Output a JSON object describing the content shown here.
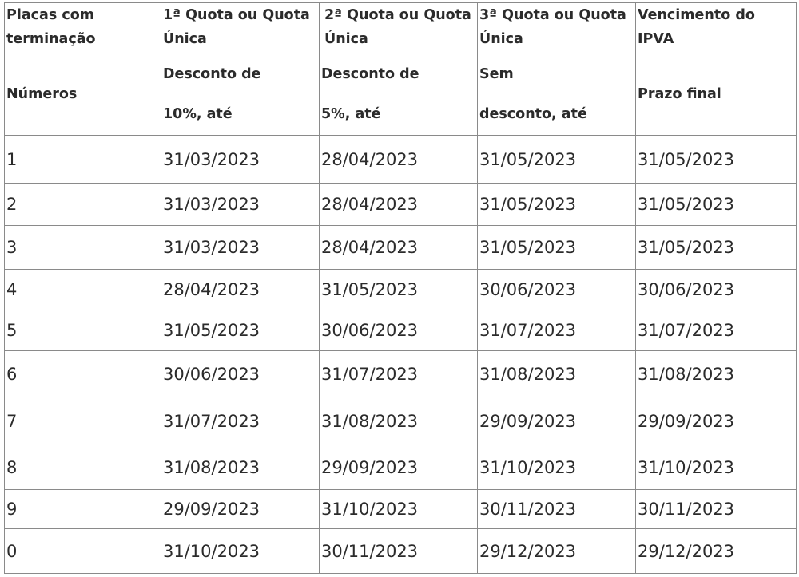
{
  "header": [
    "Placas com terminação",
    "1ª Quota ou Quota Única",
    "2ª Quota ou Quota Única",
    "3ª Quota ou Quota Única",
    "Vencimento do IPVA"
  ],
  "subheader": [
    {
      "line1": "Números",
      "line2": ""
    },
    {
      "line1": "Desconto de",
      "line2": "10%, até"
    },
    {
      "line1": "Desconto de",
      "line2": "5%, até"
    },
    {
      "line1": "Sem",
      "line2": "desconto, até"
    },
    {
      "line1": "Prazo final",
      "line2": ""
    }
  ],
  "rows": [
    [
      "1",
      "31/03/2023",
      "28/04/2023",
      "31/05/2023",
      "31/05/2023"
    ],
    [
      "2",
      "31/03/2023",
      "28/04/2023",
      "31/05/2023",
      "31/05/2023"
    ],
    [
      "3",
      "31/03/2023",
      "28/04/2023",
      "31/05/2023",
      "31/05/2023"
    ],
    [
      "4",
      "28/04/2023",
      "31/05/2023",
      "30/06/2023",
      "30/06/2023"
    ],
    [
      "5",
      "31/05/2023",
      "30/06/2023",
      "31/07/2023",
      "31/07/2023"
    ],
    [
      "6",
      "30/06/2023",
      "31/07/2023",
      "31/08/2023",
      "31/08/2023"
    ],
    [
      "7",
      "31/07/2023",
      "31/08/2023",
      "29/09/2023",
      "29/09/2023"
    ],
    [
      "8",
      "31/08/2023",
      "29/09/2023",
      "31/10/2023",
      "31/10/2023"
    ],
    [
      "9",
      "29/09/2023",
      "31/10/2023",
      "30/11/2023",
      "30/11/2023"
    ],
    [
      "0",
      "31/10/2023",
      "30/11/2023",
      "29/12/2023",
      "29/12/2023"
    ]
  ]
}
